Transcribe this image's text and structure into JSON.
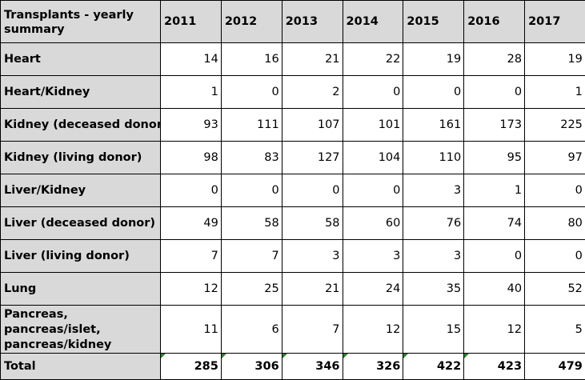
{
  "table": {
    "title": "Transplants - yearly summary",
    "years": [
      "2011",
      "2012",
      "2013",
      "2014",
      "2015",
      "2016",
      "2017"
    ],
    "rows": [
      {
        "label": "Heart",
        "values": [
          "14",
          "16",
          "21",
          "22",
          "19",
          "28",
          "19"
        ]
      },
      {
        "label": "Heart/Kidney",
        "values": [
          "1",
          "0",
          "2",
          "0",
          "0",
          "0",
          "1"
        ]
      },
      {
        "label": "Kidney (deceased donor)",
        "values": [
          "93",
          "111",
          "107",
          "101",
          "161",
          "173",
          "225"
        ]
      },
      {
        "label": "Kidney (living donor)",
        "values": [
          "98",
          "83",
          "127",
          "104",
          "110",
          "95",
          "97"
        ]
      },
      {
        "label": "Liver/Kidney",
        "values": [
          "0",
          "0",
          "0",
          "0",
          "3",
          "1",
          "0"
        ]
      },
      {
        "label": "Liver (deceased donor)",
        "values": [
          "49",
          "58",
          "58",
          "60",
          "76",
          "74",
          "80"
        ]
      },
      {
        "label": "Liver (living donor)",
        "values": [
          "7",
          "7",
          "3",
          "3",
          "3",
          "0",
          "0"
        ]
      },
      {
        "label": "Lung",
        "values": [
          "12",
          "25",
          "21",
          "24",
          "35",
          "40",
          "52"
        ]
      },
      {
        "label": "Pancreas, pancreas/islet, pancreas/kidney",
        "values": [
          "11",
          "6",
          "7",
          "12",
          "15",
          "12",
          "5"
        ]
      }
    ],
    "total": {
      "label": "Total",
      "values": [
        "285",
        "306",
        "346",
        "326",
        "422",
        "423",
        "479"
      ]
    }
  },
  "colors": {
    "header_fill": "#d9d9d9",
    "border": "#000000",
    "error_flag": "#2e7d32"
  }
}
